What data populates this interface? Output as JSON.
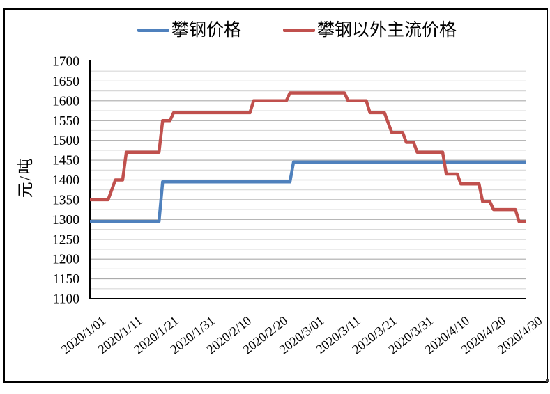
{
  "window": {
    "background": "#ffffff",
    "frame_color": "#000000"
  },
  "legend": {
    "items": [
      {
        "label": "攀钢价格",
        "color": "#4F81BD"
      },
      {
        "label": "攀钢以外主流价格",
        "color": "#C0504D"
      }
    ]
  },
  "y_axis": {
    "title": "元/吨",
    "tick_labels": [
      "1700",
      "1650",
      "1600",
      "1550",
      "1500",
      "1450",
      "1400",
      "1350",
      "1300",
      "1250",
      "1200",
      "1150",
      "1100"
    ]
  },
  "x_axis": {
    "tick_labels": [
      "2020/1/01",
      "2020/1/11",
      "2020/1/21",
      "2020/1/31",
      "2020/2/10",
      "2020/2/20",
      "2020/3/01",
      "2020/3/11",
      "2020/3/21",
      "2020/3/31",
      "2020/4/10",
      "2020/4/20",
      "2020/4/30"
    ]
  },
  "chart_data": {
    "type": "line",
    "line_style": "step",
    "title": "",
    "xlabel": "",
    "ylabel": "元/吨",
    "ylim": [
      1100,
      1700
    ],
    "y_major_step": 50,
    "y_minor_step": 25,
    "x_range": [
      "2020/1/01",
      "2020/4/30"
    ],
    "grid": "horizontal",
    "legend_position": "top",
    "grid_major_color": "#ababab",
    "grid_minor_color": "#d8d8d8",
    "series": [
      {
        "name": "攀钢价格",
        "color": "#4F81BD",
        "segments": [
          {
            "from": "2020/1/01",
            "to": "2020/1/20",
            "value": 1295
          },
          {
            "from": "2020/1/21",
            "to": "2020/2/25",
            "value": 1395
          },
          {
            "from": "2020/2/26",
            "to": "2020/4/30",
            "value": 1445
          }
        ]
      },
      {
        "name": "攀钢以外主流价格",
        "color": "#C0504D",
        "segments": [
          {
            "from": "2020/1/01",
            "to": "2020/1/06",
            "value": 1350
          },
          {
            "from": "2020/1/08",
            "to": "2020/1/10",
            "value": 1400
          },
          {
            "from": "2020/1/11",
            "to": "2020/1/20",
            "value": 1470
          },
          {
            "from": "2020/1/21",
            "to": "2020/1/23",
            "value": 1550
          },
          {
            "from": "2020/1/24",
            "to": "2020/2/14",
            "value": 1570
          },
          {
            "from": "2020/2/15",
            "to": "2020/2/24",
            "value": 1600
          },
          {
            "from": "2020/2/25",
            "to": "2020/3/11",
            "value": 1620
          },
          {
            "from": "2020/3/12",
            "to": "2020/3/17",
            "value": 1600
          },
          {
            "from": "2020/3/18",
            "to": "2020/3/22",
            "value": 1570
          },
          {
            "from": "2020/3/24",
            "to": "2020/3/27",
            "value": 1520
          },
          {
            "from": "2020/3/28",
            "to": "2020/3/30",
            "value": 1495
          },
          {
            "from": "2020/3/31",
            "to": "2020/4/07",
            "value": 1470
          },
          {
            "from": "2020/4/08",
            "to": "2020/4/11",
            "value": 1415
          },
          {
            "from": "2020/4/12",
            "to": "2020/4/17",
            "value": 1390
          },
          {
            "from": "2020/4/18",
            "to": "2020/4/20",
            "value": 1345
          },
          {
            "from": "2020/4/21",
            "to": "2020/4/27",
            "value": 1325
          },
          {
            "from": "2020/4/28",
            "to": "2020/4/30",
            "value": 1295
          }
        ]
      }
    ]
  }
}
